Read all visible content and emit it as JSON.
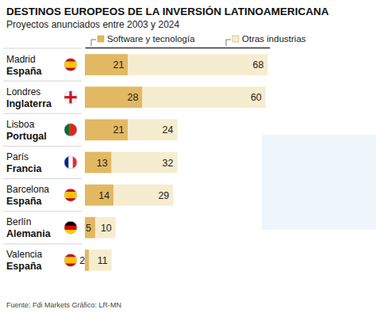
{
  "chart_data": {
    "type": "bar",
    "title": "DESTINOS EUROPEOS DE LA INVERSIÓN LATINOAMERICANA",
    "subtitle": "Proyectos anunciados entre 2003 y 2024",
    "source": "Fuente: Fdi Markets   Gráfico: LR-MN",
    "categories": [
      [
        "Madrid",
        "España"
      ],
      [
        "Londres",
        "Inglaterra"
      ],
      [
        "Lisboa",
        "Portugal"
      ],
      [
        "París",
        "Francia"
      ],
      [
        "Barcelona",
        "España"
      ],
      [
        "Berlín",
        "Alemania"
      ],
      [
        "Valencia",
        "España"
      ]
    ],
    "series": [
      {
        "name": "Software y tecnología",
        "color": "#e2b862",
        "values": [
          21,
          28,
          21,
          13,
          14,
          5,
          2
        ]
      },
      {
        "name": "Otras industrias",
        "color": "#f6eccf",
        "values": [
          68,
          60,
          24,
          32,
          29,
          10,
          11
        ]
      }
    ],
    "xlim": [
      0,
      90
    ],
    "xticks": [],
    "orientation": "horizontal",
    "stacked": true,
    "data_labels": true,
    "tick_labels": "y",
    "grid": false
  }
}
